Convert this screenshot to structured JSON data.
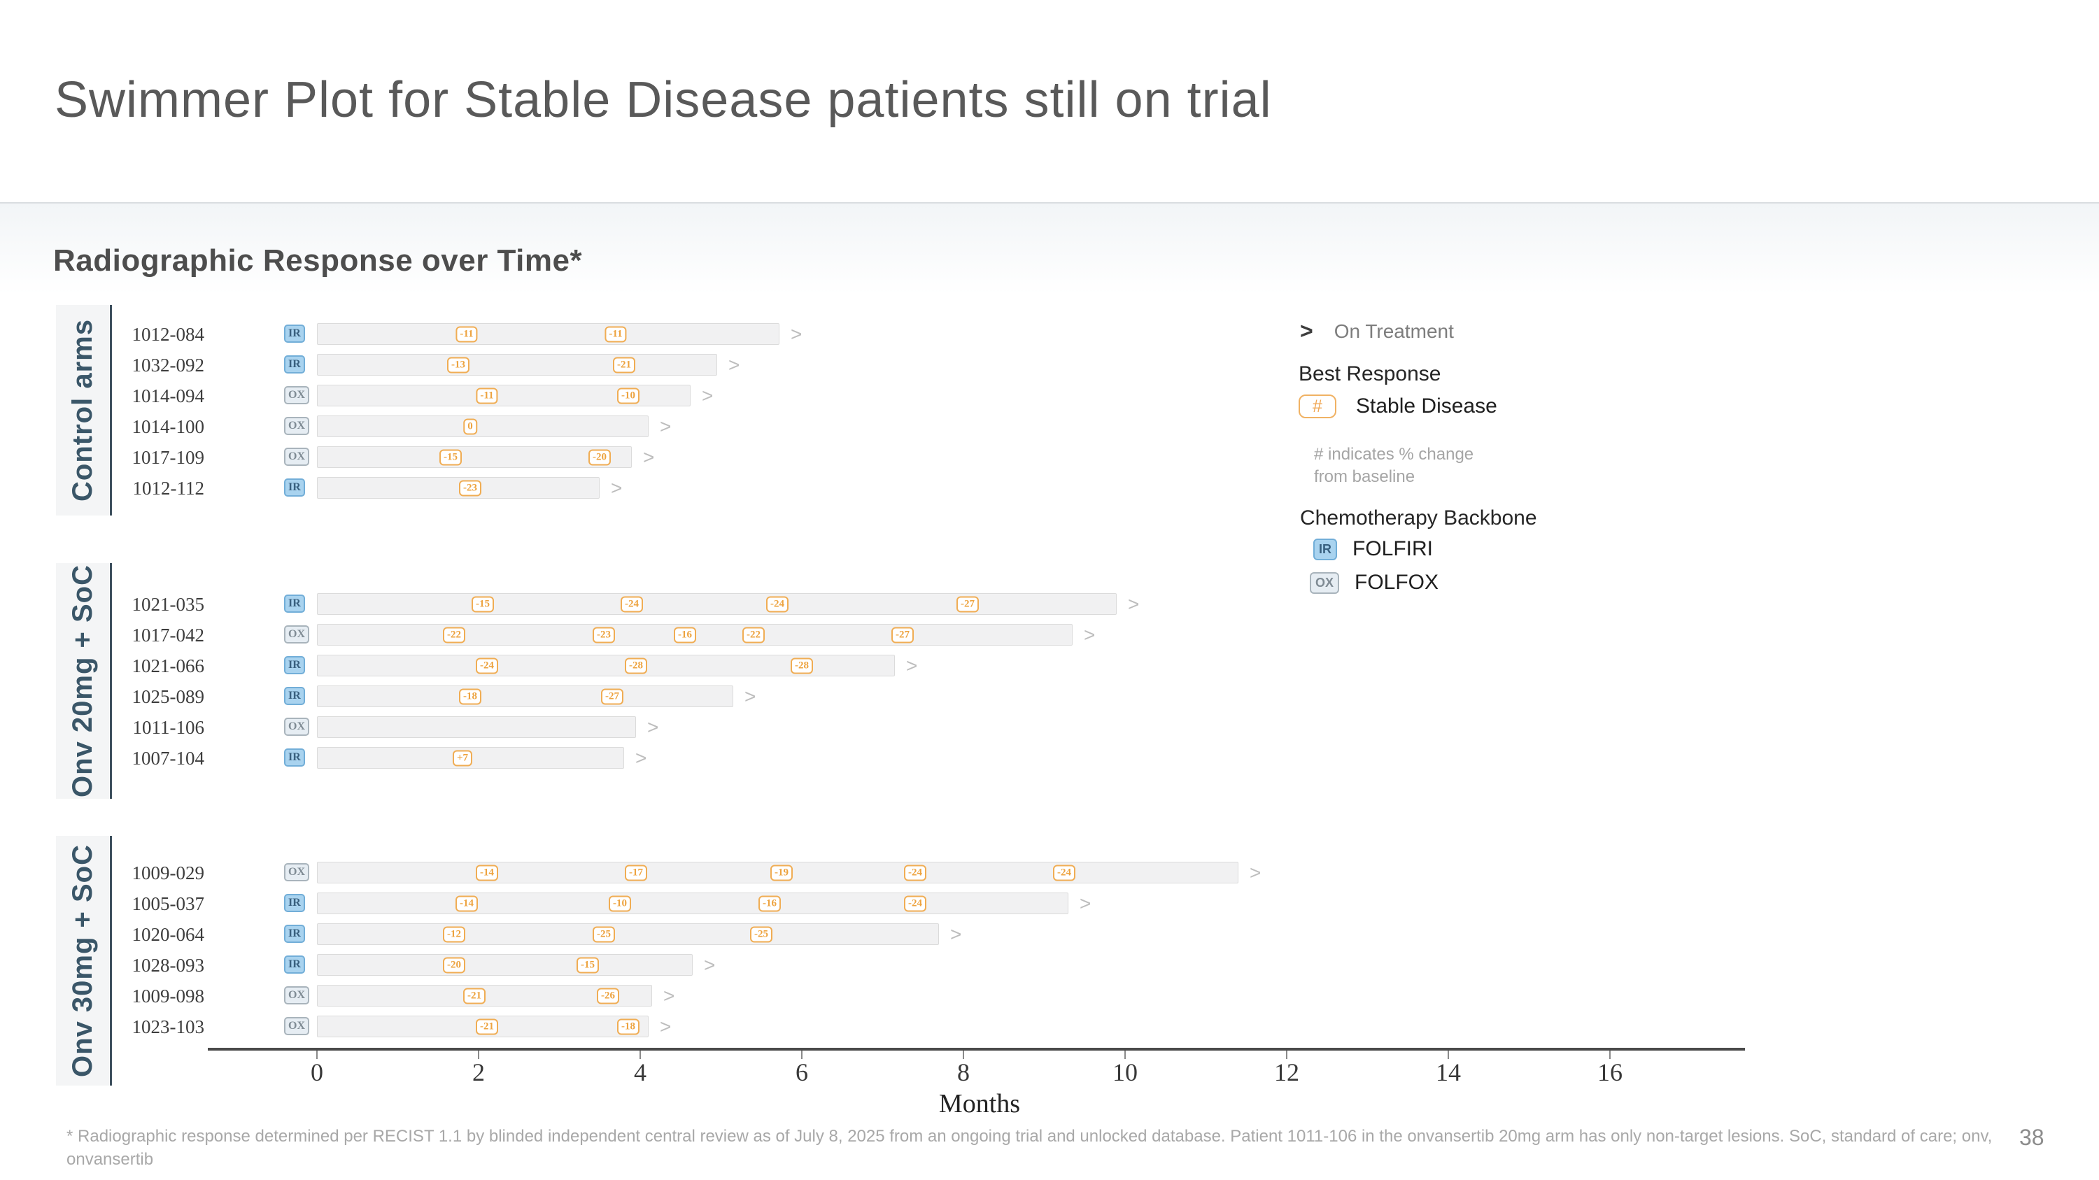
{
  "slide": {
    "title": "Swimmer Plot for Stable Disease patients still on trial",
    "section_heading": "Radiographic Response over Time*",
    "footnote": "* Radiographic response determined per RECIST 1.1 by blinded independent central review as of July 8, 2025 from an ongoing trial and unlocked database. Patient 1011-106 in the onvansertib 20mg arm has only non-target lesions. SoC, standard of care; onv, onvansertib",
    "page_number": "38"
  },
  "legend": {
    "on_treatment_symbol": ">",
    "on_treatment_label": "On Treatment",
    "best_response_heading": "Best Response",
    "stable_disease_symbol": "#",
    "stable_disease_label": "Stable Disease",
    "note_line1": "# indicates % change",
    "note_line2": "from baseline",
    "backbone_heading": "Chemotherapy Backbone",
    "folfiri_badge": "IR",
    "folfiri_label": "FOLFIRI",
    "folfox_badge": "OX",
    "folfox_label": "FOLFOX"
  },
  "colors": {
    "accent_orange": "#f0a652",
    "folfiri_blue_fill": "#a9d3ef",
    "folfiri_blue_border": "#72aed8",
    "folfox_fill": "#e6edf3",
    "folfox_border": "#a9b4bc",
    "group_label": "#3a5668",
    "bar_fill": "#f1f1f2",
    "axis": "#4a4a4a"
  },
  "chart_data": {
    "type": "swimmer",
    "title": "Radiographic Response over Time*",
    "xlabel": "Months",
    "x_ticks": [
      0,
      2,
      4,
      6,
      8,
      10,
      12,
      14,
      16
    ],
    "xlim": [
      -1.35,
      17.65
    ],
    "grid": false,
    "marker_meaning": "percent change from baseline (Stable Disease)",
    "arrow_meaning": "On Treatment",
    "groups": [
      {
        "label": "Control arms",
        "patients": [
          {
            "id": "1012-084",
            "backbone": "IR",
            "end_months": 5.72,
            "on_treatment": true,
            "assessments": [
              {
                "month": 1.85,
                "label": "-11"
              },
              {
                "month": 3.7,
                "label": "-11"
              }
            ]
          },
          {
            "id": "1032-092",
            "backbone": "IR",
            "end_months": 4.95,
            "on_treatment": true,
            "assessments": [
              {
                "month": 1.75,
                "label": "-13"
              },
              {
                "month": 3.8,
                "label": "-21"
              }
            ]
          },
          {
            "id": "1014-094",
            "backbone": "OX",
            "end_months": 4.62,
            "on_treatment": true,
            "assessments": [
              {
                "month": 2.1,
                "label": "-11"
              },
              {
                "month": 3.85,
                "label": "-10"
              }
            ]
          },
          {
            "id": "1014-100",
            "backbone": "OX",
            "end_months": 4.1,
            "on_treatment": true,
            "assessments": [
              {
                "month": 1.9,
                "label": "0"
              }
            ]
          },
          {
            "id": "1017-109",
            "backbone": "OX",
            "end_months": 3.9,
            "on_treatment": true,
            "assessments": [
              {
                "month": 1.65,
                "label": "-15"
              },
              {
                "month": 3.5,
                "label": "-20"
              }
            ]
          },
          {
            "id": "1012-112",
            "backbone": "IR",
            "end_months": 3.5,
            "on_treatment": true,
            "assessments": [
              {
                "month": 1.9,
                "label": "-23"
              }
            ]
          }
        ]
      },
      {
        "label": "Onv 20mg + SoC",
        "patients": [
          {
            "id": "1021-035",
            "backbone": "IR",
            "end_months": 9.9,
            "on_treatment": true,
            "assessments": [
              {
                "month": 2.05,
                "label": "-15"
              },
              {
                "month": 3.9,
                "label": "-24"
              },
              {
                "month": 5.7,
                "label": "-24"
              },
              {
                "month": 8.05,
                "label": "-27"
              }
            ]
          },
          {
            "id": "1017-042",
            "backbone": "OX",
            "end_months": 9.35,
            "on_treatment": true,
            "assessments": [
              {
                "month": 1.7,
                "label": "-22"
              },
              {
                "month": 3.55,
                "label": "-23"
              },
              {
                "month": 4.55,
                "label": "-16"
              },
              {
                "month": 5.4,
                "label": "-22"
              },
              {
                "month": 7.25,
                "label": "-27"
              }
            ]
          },
          {
            "id": "1021-066",
            "backbone": "IR",
            "end_months": 7.15,
            "on_treatment": true,
            "assessments": [
              {
                "month": 2.1,
                "label": "-24"
              },
              {
                "month": 3.95,
                "label": "-28"
              },
              {
                "month": 6.0,
                "label": "-28"
              }
            ]
          },
          {
            "id": "1025-089",
            "backbone": "IR",
            "end_months": 5.15,
            "on_treatment": true,
            "assessments": [
              {
                "month": 1.9,
                "label": "-18"
              },
              {
                "month": 3.65,
                "label": "-27"
              }
            ]
          },
          {
            "id": "1011-106",
            "backbone": "OX",
            "end_months": 3.95,
            "on_treatment": true,
            "assessments": []
          },
          {
            "id": "1007-104",
            "backbone": "IR",
            "end_months": 3.8,
            "on_treatment": true,
            "assessments": [
              {
                "month": 1.8,
                "label": "+7"
              }
            ]
          }
        ]
      },
      {
        "label": "Onv 30mg + SoC",
        "patients": [
          {
            "id": "1009-029",
            "backbone": "OX",
            "end_months": 11.4,
            "on_treatment": true,
            "assessments": [
              {
                "month": 2.1,
                "label": "-14"
              },
              {
                "month": 3.95,
                "label": "-17"
              },
              {
                "month": 5.75,
                "label": "-19"
              },
              {
                "month": 7.4,
                "label": "-24"
              },
              {
                "month": 9.25,
                "label": "-24"
              }
            ]
          },
          {
            "id": "1005-037",
            "backbone": "IR",
            "end_months": 9.3,
            "on_treatment": true,
            "assessments": [
              {
                "month": 1.85,
                "label": "-14"
              },
              {
                "month": 3.75,
                "label": "-10"
              },
              {
                "month": 5.6,
                "label": "-16"
              },
              {
                "month": 7.4,
                "label": "-24"
              }
            ]
          },
          {
            "id": "1020-064",
            "backbone": "IR",
            "end_months": 7.7,
            "on_treatment": true,
            "assessments": [
              {
                "month": 1.7,
                "label": "-12"
              },
              {
                "month": 3.55,
                "label": "-25"
              },
              {
                "month": 5.5,
                "label": "-25"
              }
            ]
          },
          {
            "id": "1028-093",
            "backbone": "IR",
            "end_months": 4.65,
            "on_treatment": true,
            "assessments": [
              {
                "month": 1.7,
                "label": "-20"
              },
              {
                "month": 3.35,
                "label": "-15"
              }
            ]
          },
          {
            "id": "1009-098",
            "backbone": "OX",
            "end_months": 4.15,
            "on_treatment": true,
            "assessments": [
              {
                "month": 1.95,
                "label": "-21"
              },
              {
                "month": 3.6,
                "label": "-26"
              }
            ]
          },
          {
            "id": "1023-103",
            "backbone": "OX",
            "end_months": 4.1,
            "on_treatment": true,
            "assessments": [
              {
                "month": 2.1,
                "label": "-21"
              },
              {
                "month": 3.85,
                "label": "-18"
              }
            ]
          }
        ]
      }
    ]
  }
}
